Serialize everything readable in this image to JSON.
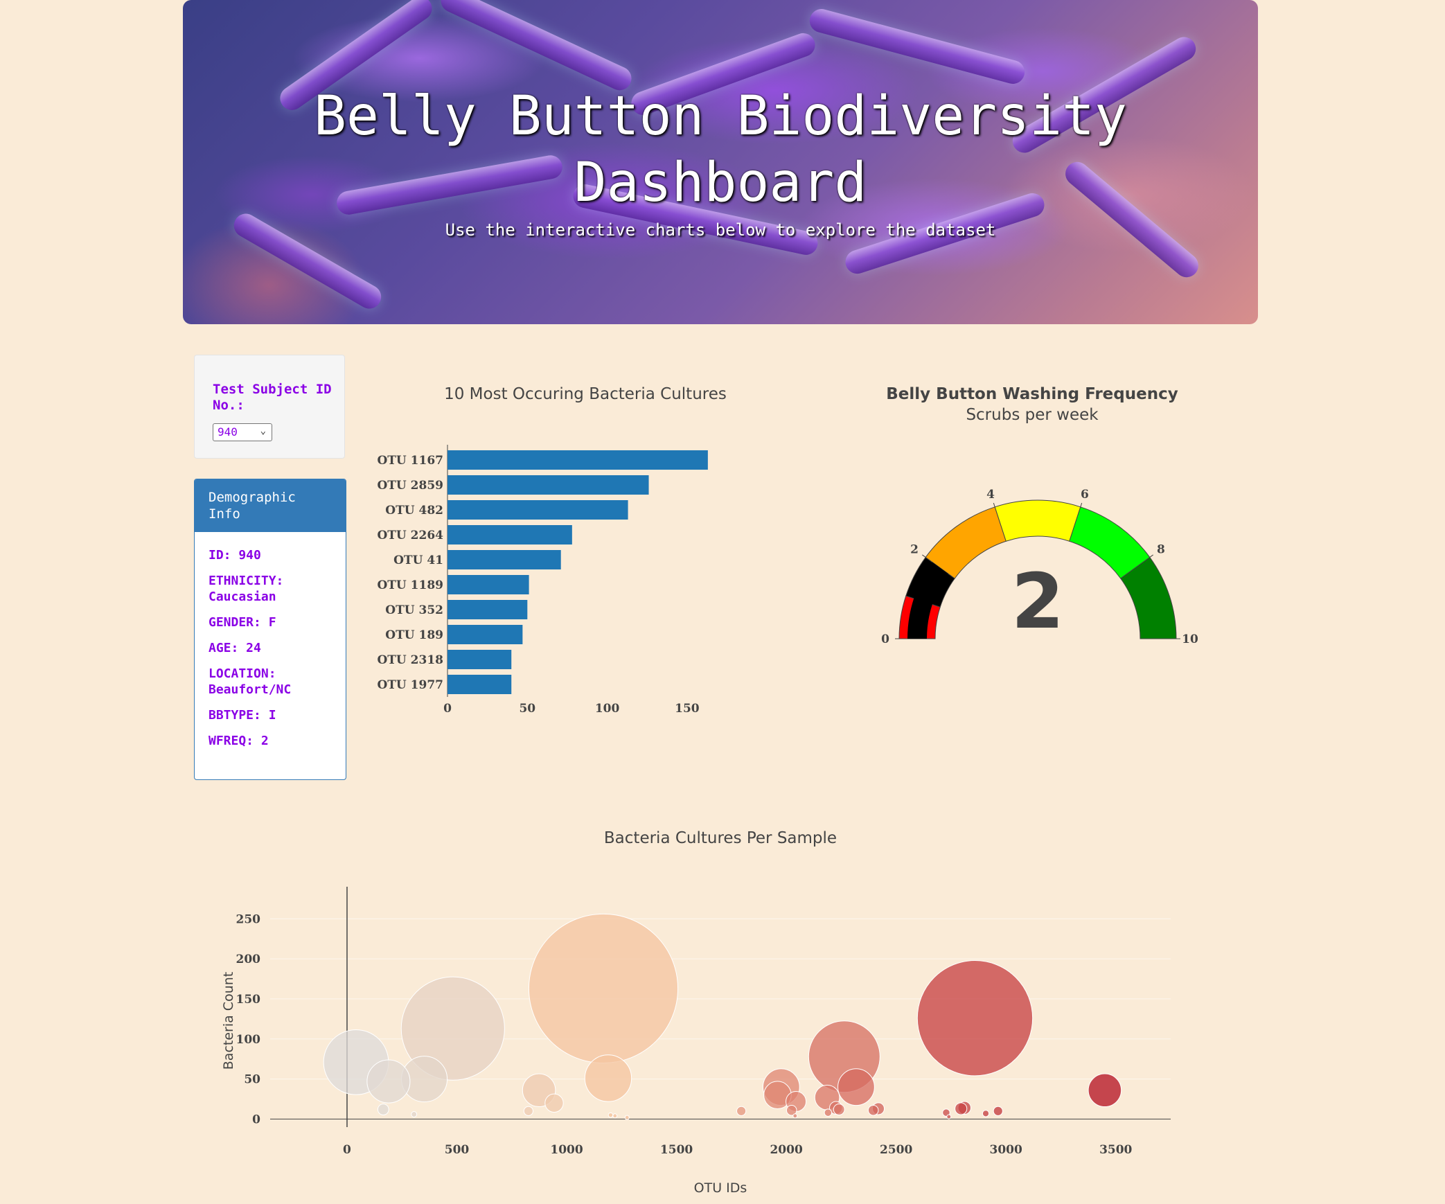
{
  "header": {
    "title_line1": "Belly Button Biodiversity",
    "title_line2": "Dashboard",
    "subtitle": "Use the interactive charts below to explore the dataset"
  },
  "selector": {
    "label": "Test Subject ID No.:",
    "selected_value": "940"
  },
  "demographics": {
    "heading": "Demographic Info",
    "lines": [
      "ID: 940",
      "ETHNICITY: Caucasian",
      "GENDER: F",
      "AGE: 24",
      "LOCATION: Beaufort/NC",
      "BBTYPE: I",
      "WFREQ: 2"
    ]
  },
  "chart_data": [
    {
      "type": "bar",
      "orientation": "horizontal",
      "title": "10 Most Occuring Bacteria Cultures",
      "categories": [
        "OTU 1167",
        "OTU 2859",
        "OTU 482",
        "OTU 2264",
        "OTU 41",
        "OTU 1189",
        "OTU 352",
        "OTU 189",
        "OTU 2318",
        "OTU 1977"
      ],
      "values": [
        163,
        126,
        113,
        78,
        71,
        51,
        50,
        47,
        40,
        40
      ],
      "xlim": [
        0,
        170
      ],
      "xticks": [
        0,
        50,
        100,
        150
      ],
      "color": "#1f77b4"
    },
    {
      "type": "gauge",
      "title": "Belly Button Washing Frequency",
      "subtitle": "Scrubs per week",
      "value": 2,
      "range": [
        0,
        10
      ],
      "ticks": [
        0,
        2,
        4,
        6,
        8,
        10
      ],
      "steps": [
        {
          "range": [
            0,
            1
          ],
          "color": "#ff0000"
        },
        {
          "range": [
            1,
            2
          ],
          "color": "#000000"
        },
        {
          "range": [
            2,
            4
          ],
          "color": "#ffa500"
        },
        {
          "range": [
            4,
            6
          ],
          "color": "#ffff00"
        },
        {
          "range": [
            6,
            8
          ],
          "color": "#00ff00"
        },
        {
          "range": [
            8,
            10
          ],
          "color": "#008000"
        }
      ]
    },
    {
      "type": "scatter",
      "subtype": "bubble",
      "title": "Bacteria Cultures Per Sample",
      "xlabel": "OTU IDs",
      "ylabel": "Bacteria Count",
      "xlim": [
        -350,
        3750
      ],
      "ylim": [
        -10,
        290
      ],
      "xticks": [
        0,
        500,
        1000,
        1500,
        2000,
        2500,
        3000,
        3500
      ],
      "yticks": [
        0,
        50,
        100,
        150,
        200,
        250
      ],
      "points": [
        {
          "x": 41,
          "y": 71
        },
        {
          "x": 189,
          "y": 47
        },
        {
          "x": 352,
          "y": 50
        },
        {
          "x": 482,
          "y": 113
        },
        {
          "x": 1167,
          "y": 163
        },
        {
          "x": 1189,
          "y": 51
        },
        {
          "x": 2859,
          "y": 126
        },
        {
          "x": 2264,
          "y": 78
        },
        {
          "x": 2318,
          "y": 40
        },
        {
          "x": 1977,
          "y": 40
        },
        {
          "x": 3450,
          "y": 36
        },
        {
          "x": 874,
          "y": 36
        },
        {
          "x": 943,
          "y": 20
        },
        {
          "x": 1960,
          "y": 30
        },
        {
          "x": 2044,
          "y": 22
        },
        {
          "x": 2186,
          "y": 27
        },
        {
          "x": 2226,
          "y": 14
        },
        {
          "x": 2396,
          "y": 11
        },
        {
          "x": 2419,
          "y": 13
        },
        {
          "x": 2795,
          "y": 13
        },
        {
          "x": 2811,
          "y": 14
        },
        {
          "x": 2964,
          "y": 10
        },
        {
          "x": 1795,
          "y": 10
        },
        {
          "x": 826,
          "y": 10
        },
        {
          "x": 165,
          "y": 12
        },
        {
          "x": 2728,
          "y": 8
        },
        {
          "x": 2908,
          "y": 7
        },
        {
          "x": 2024,
          "y": 11
        },
        {
          "x": 2240,
          "y": 12
        },
        {
          "x": 2190,
          "y": 8
        },
        {
          "x": 2040,
          "y": 4
        },
        {
          "x": 1200,
          "y": 5
        },
        {
          "x": 1220,
          "y": 4
        },
        {
          "x": 305,
          "y": 6
        },
        {
          "x": 1275,
          "y": 2
        },
        {
          "x": 2740,
          "y": 3
        }
      ],
      "colorscale": "Reds by OTU ID"
    }
  ]
}
